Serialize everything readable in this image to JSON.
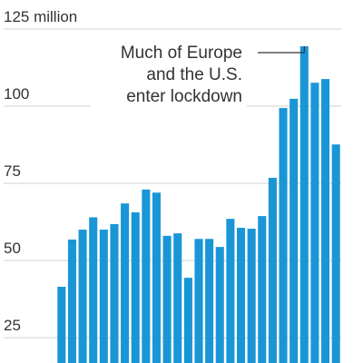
{
  "chart_data": {
    "type": "bar",
    "categories": [
      null,
      null,
      null,
      null,
      null,
      null,
      null,
      null,
      null,
      null,
      null,
      null,
      null,
      null,
      null,
      null,
      null,
      null,
      null,
      null,
      null,
      null,
      null,
      null,
      null,
      null,
      null
    ],
    "values": [
      41.5,
      56.8,
      60,
      64,
      60,
      61.8,
      68.5,
      65.6,
      73,
      72,
      58,
      58.8,
      44.4,
      57,
      57,
      54.4,
      63.5,
      60.6,
      60.3,
      64.4,
      76.8,
      99.4,
      102.4,
      119.4,
      107.6,
      108.8,
      87.6
    ],
    "color": "#1a96d6",
    "ylim": [
      16.8,
      134.4
    ],
    "yticks": [
      25,
      50,
      75,
      100,
      {
        "value": 125,
        "label": "125 million"
      }
    ],
    "grid": true,
    "annotation": [
      "Much of Europe",
      "and the U.S.",
      "enter lockdown"
    ]
  }
}
